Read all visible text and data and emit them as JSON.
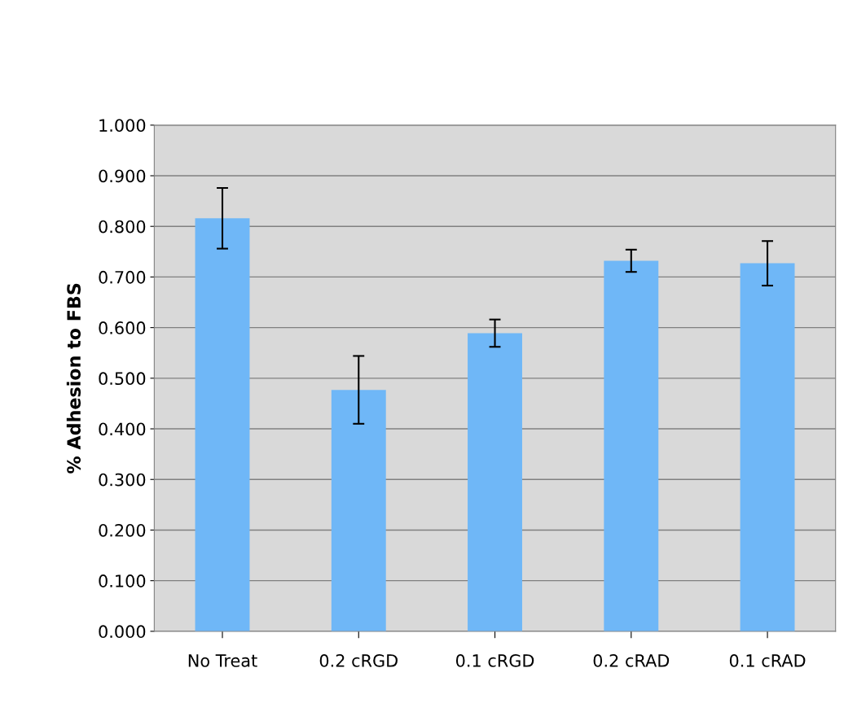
{
  "chart_data": {
    "type": "bar",
    "ylabel": "% Adhesion to FBS",
    "categories": [
      "No Treat",
      "0.2 cRGD",
      "0.1 cRGD",
      "0.2 cRAD",
      "0.1 cRAD"
    ],
    "values": [
      0.816,
      0.477,
      0.589,
      0.732,
      0.727
    ],
    "errors": [
      0.06,
      0.067,
      0.027,
      0.022,
      0.044
    ],
    "color": "#6fb7f7",
    "ylim": [
      0,
      1
    ],
    "yticks": [
      {
        "value": 0,
        "label": "0.000"
      },
      {
        "value": 0.1,
        "label": "0.100"
      },
      {
        "value": 0.2,
        "label": "0.200"
      },
      {
        "value": 0.3,
        "label": "0.300"
      },
      {
        "value": 0.4,
        "label": "0.400"
      },
      {
        "value": 0.5,
        "label": "0.500"
      },
      {
        "value": 0.6,
        "label": "0.600"
      },
      {
        "value": 0.7,
        "label": "0.700"
      },
      {
        "value": 0.8,
        "label": "0.800"
      },
      {
        "value": 0.9,
        "label": "0.900"
      },
      {
        "value": 1.0,
        "label": "1.000"
      }
    ],
    "grid": "y"
  }
}
